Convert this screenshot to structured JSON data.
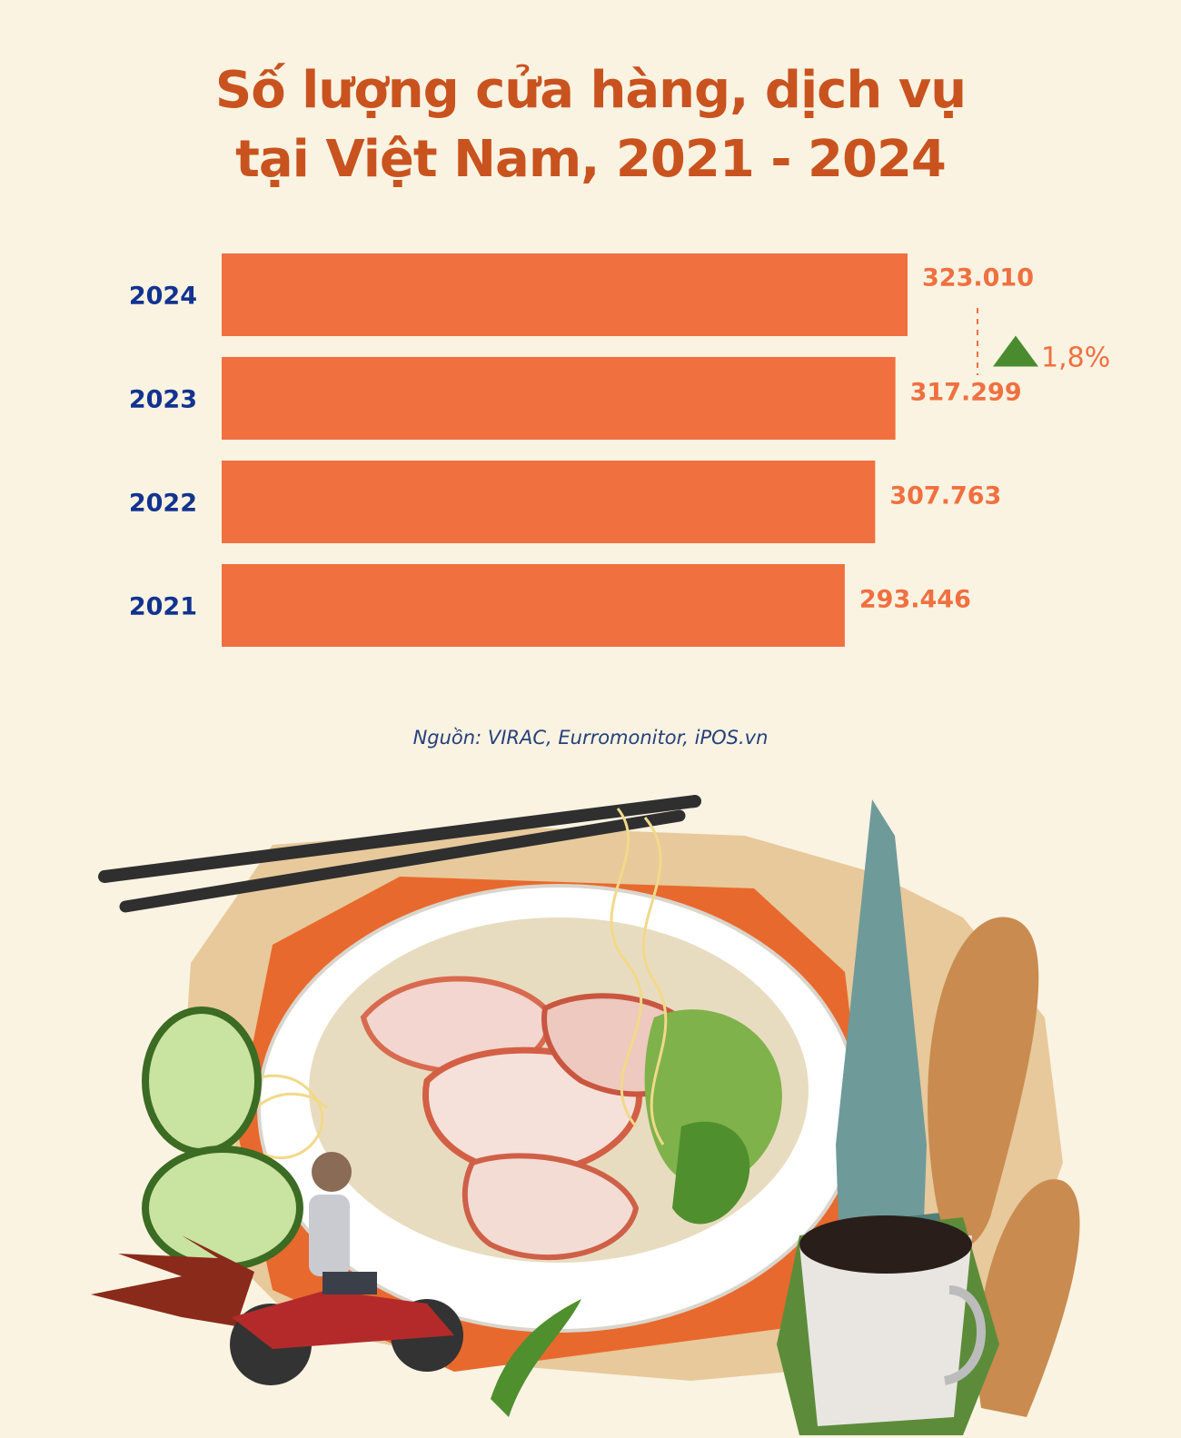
{
  "title_lines": [
    "Số lượng cửa hàng, dịch vụ",
    "tại Việt Nam, 2021 - 2024"
  ],
  "chart_data": {
    "type": "bar",
    "orientation": "horizontal",
    "categories": [
      "2024",
      "2023",
      "2022",
      "2021"
    ],
    "values": [
      323010,
      317299,
      307763,
      293446
    ],
    "value_labels": [
      "323.010",
      "317.299",
      "307.763",
      "293.446"
    ],
    "xlim": [
      0,
      323010
    ],
    "grid": false,
    "annotation": {
      "text": "1,8%",
      "between": [
        "2023",
        "2024"
      ],
      "direction": "up"
    }
  },
  "source": "Nguồn: VIRAC, Eurromonitor, iPOS.vn",
  "colors": {
    "title": "#c9531f",
    "bar": "#f07040",
    "year_label": "#12338f",
    "value_label": "#f07040",
    "growth_arrow": "#4b8b2f",
    "background": "#faf3e2"
  }
}
